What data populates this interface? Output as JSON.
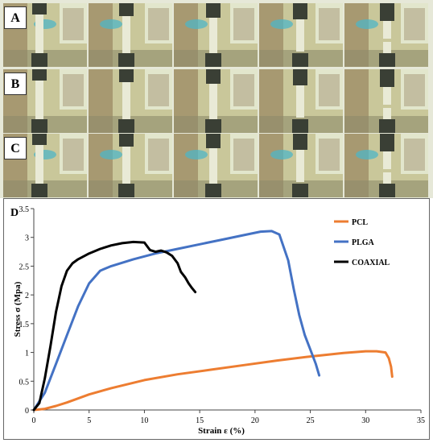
{
  "panels": {
    "A": "A",
    "B": "B",
    "C": "C",
    "D": "D"
  },
  "photo_colors": {
    "background": "#c9c79a",
    "cabinet": "#8a7350",
    "window": "#e8edd8",
    "blue_object": "#4fb6c6",
    "grip": "#3a3f35",
    "specimen": "#e9ead6"
  },
  "chart_data": {
    "type": "line",
    "title": "",
    "xlabel": "Strain  ε  (%)",
    "ylabel": "Stress σ  (Mpa)",
    "xlim": [
      0,
      35
    ],
    "ylim": [
      0,
      3.5
    ],
    "xticks": [
      "0",
      "5",
      "10",
      "15",
      "20",
      "25",
      "30",
      "35"
    ],
    "yticks": [
      "0",
      "0.5",
      "1",
      "1.5",
      "2",
      "2.5",
      "3",
      "3.5"
    ],
    "grid": false,
    "legend": "right",
    "series": [
      {
        "name": "PCL",
        "color": "#ed7d31",
        "x": [
          0,
          1,
          2,
          3,
          4,
          5,
          7,
          10,
          13,
          16,
          19,
          22,
          25,
          28,
          30,
          31,
          31.8,
          32.1,
          32.3,
          32.4
        ],
        "y": [
          0,
          0.02,
          0.07,
          0.13,
          0.2,
          0.27,
          0.38,
          0.52,
          0.62,
          0.7,
          0.78,
          0.86,
          0.93,
          0.99,
          1.02,
          1.02,
          1.0,
          0.9,
          0.75,
          0.58
        ]
      },
      {
        "name": "PLGA",
        "color": "#4472c4",
        "x": [
          0,
          1,
          2,
          3,
          4,
          5,
          6,
          7,
          9,
          11,
          13,
          15,
          17,
          19,
          20.5,
          21.5,
          22.2,
          23,
          23.5,
          24,
          24.5,
          25,
          25.5,
          25.8
        ],
        "y": [
          0,
          0.3,
          0.8,
          1.3,
          1.8,
          2.2,
          2.42,
          2.5,
          2.62,
          2.72,
          2.8,
          2.88,
          2.96,
          3.04,
          3.1,
          3.11,
          3.05,
          2.6,
          2.1,
          1.65,
          1.3,
          1.05,
          0.8,
          0.6
        ]
      },
      {
        "name": "COAXIAL",
        "color": "#000000",
        "x": [
          0,
          0.5,
          1,
          1.5,
          2,
          2.5,
          3,
          3.5,
          4,
          5,
          6,
          7,
          8,
          9,
          10,
          10.5,
          11,
          11.5,
          12,
          12.5,
          13,
          13.3,
          13.7,
          14,
          14.3,
          14.6
        ],
        "y": [
          0,
          0.12,
          0.55,
          1.1,
          1.7,
          2.15,
          2.42,
          2.55,
          2.62,
          2.72,
          2.8,
          2.86,
          2.9,
          2.92,
          2.91,
          2.78,
          2.75,
          2.77,
          2.74,
          2.68,
          2.55,
          2.4,
          2.3,
          2.2,
          2.12,
          2.05
        ]
      }
    ]
  }
}
